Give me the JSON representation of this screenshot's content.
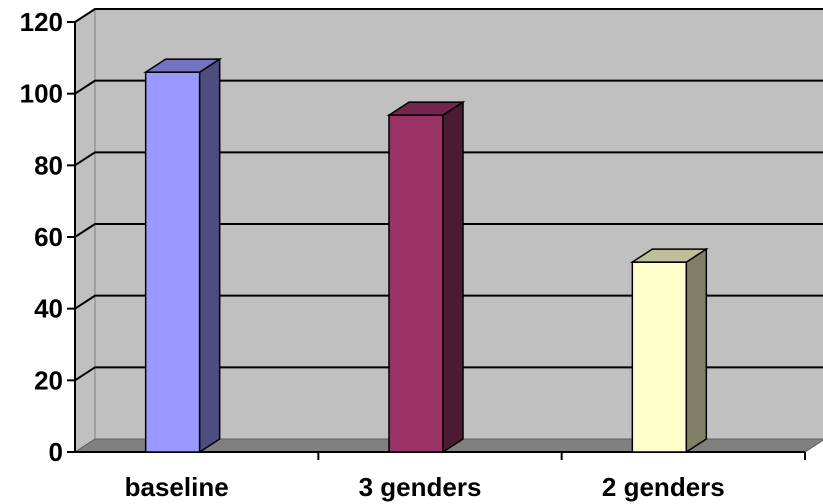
{
  "chart_data": {
    "type": "bar",
    "categories": [
      "baseline",
      "3 genders",
      "2 genders"
    ],
    "values": [
      106,
      94,
      53
    ],
    "ylim": [
      0,
      120
    ],
    "yticks": [
      "0",
      "20",
      "40",
      "60",
      "80",
      "100",
      "120"
    ],
    "title": "",
    "xlabel": "",
    "ylabel": "",
    "grid": true,
    "style": "3d-column",
    "colors": {
      "wall": "#c0c0c0",
      "floor": "#808080",
      "gridline": "#000000",
      "bars": [
        {
          "front": "#9999ff",
          "side": "#4d4d80",
          "top": "#7373bf"
        },
        {
          "front": "#993366",
          "side": "#4d1a33",
          "top": "#73264d"
        },
        {
          "front": "#ffffcc",
          "side": "#808066",
          "top": "#bfbf99"
        }
      ]
    }
  }
}
